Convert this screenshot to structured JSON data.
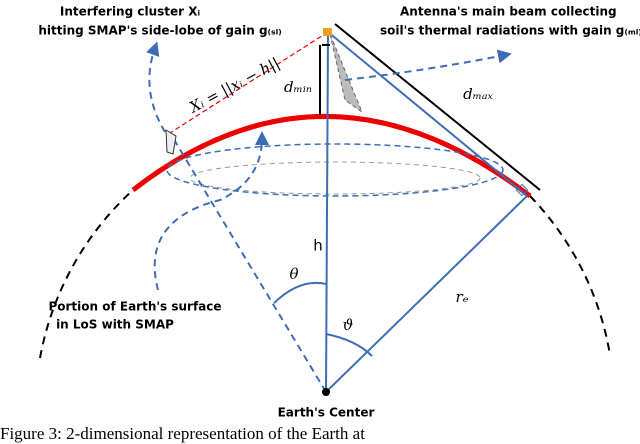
{
  "labels": {
    "interferer_line1": "Interfering cluster Xᵢ",
    "interferer_line2": "hitting SMAP's side-lobe of gain g₍ₛₗ₎",
    "beam_line1": "Antenna's main beam collecting",
    "beam_line2": "soil's thermal radiations with gain g₍ₘₗ₎",
    "distance": "Xᵢ = ||xᵢ − h||",
    "d_min": "dₘᵢₙ",
    "d_max": "dₘₐₓ",
    "h": "h",
    "theta": "θ",
    "vartheta": "ϑ",
    "r_e": "rₑ",
    "portion_line1": "Portion of Earth's surface",
    "portion_line2": "in LoS with SMAP",
    "center": "Earth's Center"
  },
  "caption": "Figure 3: 2-dimensional representation of the Earth at"
}
